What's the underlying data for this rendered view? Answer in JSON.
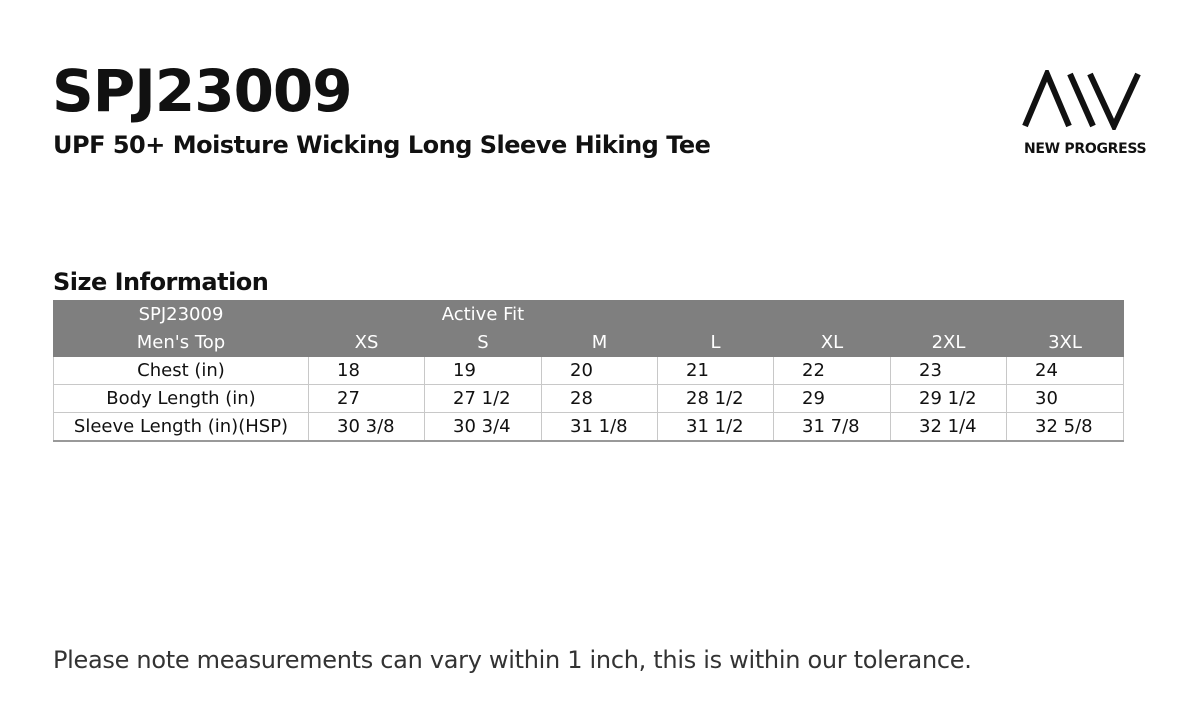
{
  "header": {
    "title": "SPJ23009",
    "subtitle": "UPF 50+ Moisture Wicking Long Sleeve Hiking Tee",
    "logo_text": "NEW PROGRESS"
  },
  "section_title": "Size Information",
  "table": {
    "header_rows": [
      [
        "SPJ23009",
        "",
        "Active Fit",
        "",
        "",
        "",
        "",
        ""
      ],
      [
        "Men's Top",
        "XS",
        "S",
        "M",
        "L",
        "XL",
        "2XL",
        "3XL"
      ]
    ],
    "rows": [
      [
        "Chest (in)",
        "18",
        "19",
        "20",
        "21",
        "22",
        "23",
        "24"
      ],
      [
        "Body Length (in)",
        "27",
        "27 1/2",
        "28",
        "28 1/2",
        "29",
        "29 1/2",
        "30"
      ],
      [
        "Sleeve Length (in)(HSP)",
        "30 3/8",
        "30 3/4",
        "31 1/8",
        "31 1/2",
        "31 7/8",
        "32 1/4",
        "32 5/8"
      ]
    ]
  },
  "note": "Please note measurements can vary within 1 inch, this is within our tolerance."
}
